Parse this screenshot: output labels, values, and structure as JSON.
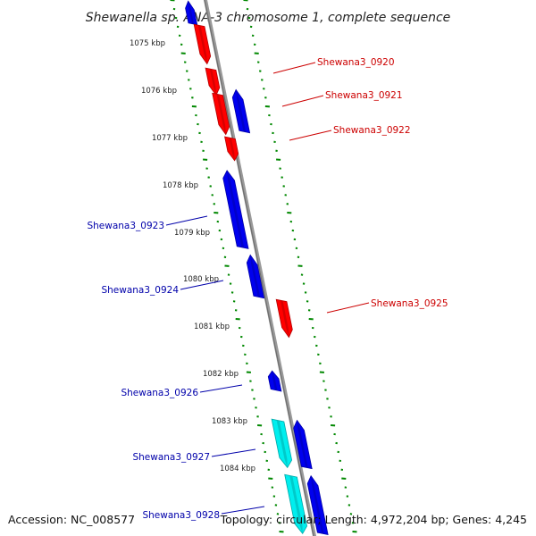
{
  "title": "Shewanella sp. ANA-3 chromosome 1, complete sequence",
  "footer": {
    "accession": "Accession: NC_008577",
    "summary": "Topology: circular; Length: 4,972,204 bp; Genes: 4,245"
  },
  "colors": {
    "forward": "#ff0000",
    "reverse": "#0000ee",
    "rna": "#00eeee",
    "backbone": "#888888",
    "ruler": "#008800",
    "forward_label": "#cc0000",
    "reverse_label": "#0000aa"
  },
  "ruler_labels": [
    "1075 kbp",
    "1076 kbp",
    "1077 kbp",
    "1078 kbp",
    "1079 kbp",
    "1080 kbp",
    "1081 kbp",
    "1082 kbp",
    "1083 kbp",
    "1084 kbp"
  ],
  "gene_labels": {
    "forward": [
      "Shewana3_0920",
      "Shewana3_0921",
      "Shewana3_0922",
      "Shewana3_0925"
    ],
    "reverse": [
      "Shewana3_0923",
      "Shewana3_0924",
      "Shewana3_0926",
      "Shewana3_0927",
      "Shewana3_0928"
    ]
  }
}
